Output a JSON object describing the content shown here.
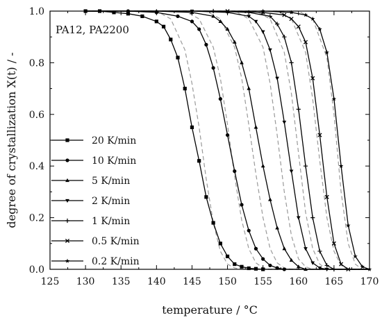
{
  "chart_data": {
    "type": "line",
    "annotation": "PA12, PA2200",
    "xlabel": "temperature / °C",
    "ylabel": "degree of crystallization X(t) / -",
    "xlim": [
      125,
      170
    ],
    "ylim": [
      0,
      1
    ],
    "xticks": [
      "125",
      "130",
      "135",
      "140",
      "145",
      "150",
      "155",
      "160",
      "165",
      "170"
    ],
    "yticks": [
      "0.0",
      "0.2",
      "0.4",
      "0.6",
      "0.8",
      "1.0"
    ],
    "legend_position": "center-left",
    "grid": false,
    "colors": {
      "measured": "#000000",
      "model": "#999999"
    },
    "series": [
      {
        "name": "20 K/min",
        "marker": "square",
        "x": [
          130,
          132,
          134,
          136,
          138,
          140,
          141,
          142,
          143,
          144,
          145,
          146,
          147,
          148,
          149,
          150,
          151,
          152,
          153,
          154,
          155
        ],
        "values": [
          1.0,
          1.0,
          0.995,
          0.99,
          0.98,
          0.96,
          0.94,
          0.89,
          0.82,
          0.7,
          0.55,
          0.42,
          0.28,
          0.18,
          0.1,
          0.05,
          0.02,
          0.01,
          0.004,
          0.002,
          0.0
        ]
      },
      {
        "name": "10 K/min",
        "marker": "circle",
        "x": [
          136,
          140,
          143,
          145,
          146,
          147,
          148,
          149,
          150,
          151,
          152,
          153,
          154,
          155,
          156,
          157,
          158
        ],
        "values": [
          1.0,
          0.995,
          0.98,
          0.96,
          0.93,
          0.87,
          0.78,
          0.66,
          0.52,
          0.38,
          0.25,
          0.15,
          0.08,
          0.04,
          0.015,
          0.005,
          0.0
        ]
      },
      {
        "name": "5 K/min",
        "marker": "triangle-up",
        "x": [
          140,
          145,
          148,
          149,
          150,
          151,
          152,
          153,
          154,
          155,
          156,
          157,
          158,
          159,
          160,
          161
        ],
        "values": [
          1.0,
          0.995,
          0.98,
          0.96,
          0.93,
          0.88,
          0.8,
          0.7,
          0.55,
          0.4,
          0.27,
          0.16,
          0.08,
          0.035,
          0.01,
          0.0
        ]
      },
      {
        "name": "2 K/min",
        "marker": "triangle-down",
        "x": [
          145,
          150,
          153,
          154,
          155,
          156,
          157,
          158,
          159,
          160,
          161,
          162,
          163,
          164
        ],
        "values": [
          1.0,
          0.995,
          0.98,
          0.96,
          0.92,
          0.85,
          0.74,
          0.57,
          0.38,
          0.2,
          0.08,
          0.025,
          0.005,
          0.0
        ]
      },
      {
        "name": "1 K/min",
        "marker": "plus",
        "x": [
          148,
          153,
          156,
          157,
          158,
          159,
          160,
          161,
          162,
          163,
          164,
          165
        ],
        "values": [
          1.0,
          0.995,
          0.98,
          0.95,
          0.9,
          0.8,
          0.62,
          0.4,
          0.2,
          0.07,
          0.015,
          0.0
        ]
      },
      {
        "name": "0.5 K/min",
        "marker": "x",
        "x": [
          150,
          155,
          158,
          159,
          160,
          161,
          162,
          163,
          164,
          165,
          166,
          167
        ],
        "values": [
          1.0,
          0.995,
          0.985,
          0.97,
          0.94,
          0.88,
          0.74,
          0.52,
          0.28,
          0.1,
          0.02,
          0.0
        ]
      },
      {
        "name": "0.2 K/min",
        "marker": "star",
        "x": [
          155,
          159,
          161,
          162,
          163,
          164,
          165,
          166,
          167,
          168,
          169,
          170
        ],
        "values": [
          1.0,
          0.995,
          0.985,
          0.97,
          0.93,
          0.84,
          0.66,
          0.4,
          0.17,
          0.05,
          0.01,
          0.0
        ]
      }
    ],
    "model_series": [
      {
        "x": [
          140,
          142,
          144,
          145,
          146,
          147,
          148,
          149,
          150,
          151,
          152
        ],
        "values": [
          1.0,
          0.97,
          0.85,
          0.72,
          0.55,
          0.35,
          0.18,
          0.07,
          0.02,
          0.005,
          0.0
        ]
      },
      {
        "x": [
          144,
          146,
          148,
          149,
          150,
          151,
          152,
          153,
          154,
          155,
          156
        ],
        "values": [
          1.0,
          0.97,
          0.86,
          0.74,
          0.56,
          0.36,
          0.19,
          0.08,
          0.025,
          0.005,
          0.0
        ]
      },
      {
        "x": [
          147,
          149,
          151,
          152,
          153,
          154,
          155,
          156,
          157,
          158,
          159
        ],
        "values": [
          1.0,
          0.97,
          0.86,
          0.74,
          0.56,
          0.37,
          0.2,
          0.08,
          0.025,
          0.005,
          0.0
        ]
      },
      {
        "x": [
          151,
          153,
          155,
          156,
          157,
          158,
          159,
          160,
          161,
          162
        ],
        "values": [
          1.0,
          0.97,
          0.86,
          0.72,
          0.52,
          0.3,
          0.13,
          0.04,
          0.01,
          0.0
        ]
      },
      {
        "x": [
          154,
          156,
          158,
          159,
          160,
          161,
          162,
          163,
          164
        ],
        "values": [
          1.0,
          0.97,
          0.84,
          0.68,
          0.45,
          0.22,
          0.08,
          0.02,
          0.0
        ]
      },
      {
        "x": [
          157,
          159,
          161,
          162,
          163,
          164,
          165,
          166,
          167
        ],
        "values": [
          1.0,
          0.97,
          0.84,
          0.66,
          0.42,
          0.2,
          0.07,
          0.015,
          0.0
        ]
      },
      {
        "x": [
          160,
          162,
          164,
          165,
          166,
          167,
          168,
          169
        ],
        "values": [
          1.0,
          0.97,
          0.82,
          0.6,
          0.3,
          0.1,
          0.02,
          0.0
        ]
      }
    ]
  }
}
